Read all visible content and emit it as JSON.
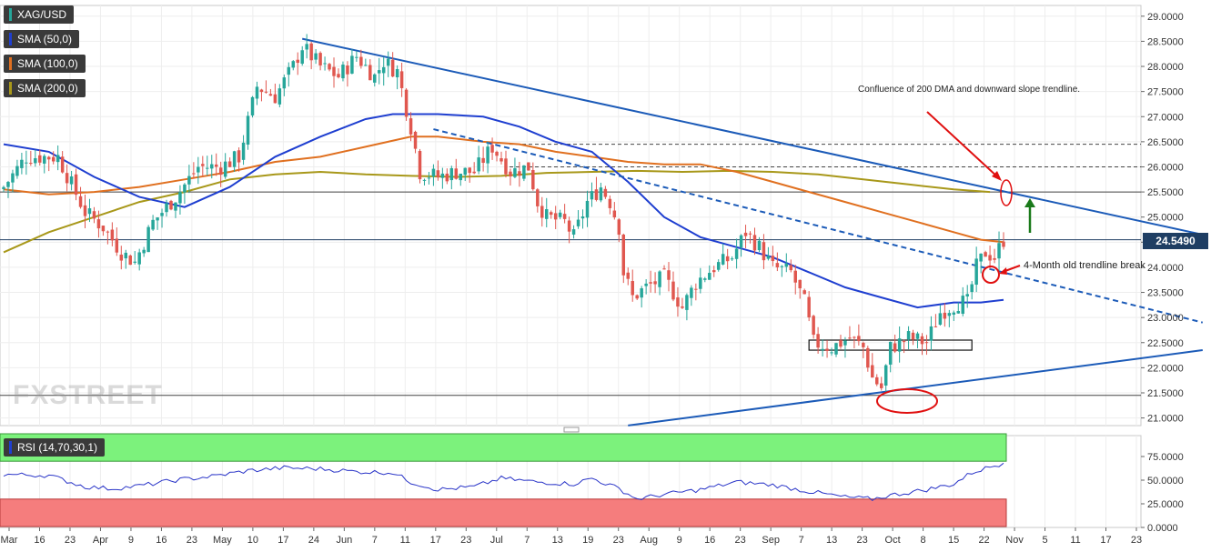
{
  "legend": {
    "symbol": {
      "label": "XAG/USD",
      "color": "#26a69a"
    },
    "sma50": {
      "label": "SMA (50,0)",
      "color": "#1f3fd0"
    },
    "sma100": {
      "label": "SMA (100,0)",
      "color": "#e07020"
    },
    "sma200": {
      "label": "SMA (200,0)",
      "color": "#a8981a"
    }
  },
  "rsi_label": "RSI (14,70,30,1)",
  "last_price": "24.5490",
  "watermark": "FXSTREET",
  "annotations": {
    "confluence": "Confluence of 200 DMA and downward slope trendline.",
    "trendline_break": "4-Month old trendline break"
  },
  "chart_data": [
    {
      "type": "candlestick",
      "series_name": "XAG/USD",
      "y_ticks": [
        "29.0000",
        "28.5000",
        "28.0000",
        "27.5000",
        "27.0000",
        "26.5000",
        "26.0000",
        "25.5000",
        "25.0000",
        "24.5000",
        "24.0000",
        "23.5000",
        "23.0000",
        "22.5000",
        "22.0000",
        "21.5000",
        "21.0000"
      ],
      "ylim": [
        20.85,
        29.25
      ],
      "x_ticks": [
        "Mar",
        "16",
        "23",
        "Apr",
        "9",
        "16",
        "23",
        "May",
        "10",
        "17",
        "24",
        "Jun",
        "7",
        "11",
        "17",
        "23",
        "Jul",
        "7",
        "13",
        "19",
        "23",
        "Aug",
        "9",
        "16",
        "23",
        "Sep",
        "7",
        "13",
        "23",
        "Oct",
        "8",
        "15",
        "22",
        "Nov",
        "5",
        "11",
        "17",
        "23"
      ],
      "anchors": [
        {
          "day": 0,
          "close": 25.6
        },
        {
          "day": 5,
          "close": 26.2
        },
        {
          "day": 12,
          "close": 26.2
        },
        {
          "day": 18,
          "close": 25.1
        },
        {
          "day": 22,
          "close": 24.8
        },
        {
          "day": 26,
          "close": 24.3
        },
        {
          "day": 29,
          "close": 24.1
        },
        {
          "day": 33,
          "close": 24.9
        },
        {
          "day": 38,
          "close": 25.4
        },
        {
          "day": 43,
          "close": 26.0
        },
        {
          "day": 48,
          "close": 26.0
        },
        {
          "day": 52,
          "close": 26.2
        },
        {
          "day": 56,
          "close": 27.6
        },
        {
          "day": 60,
          "close": 27.4
        },
        {
          "day": 64,
          "close": 28.0
        },
        {
          "day": 66,
          "close": 28.4
        },
        {
          "day": 70,
          "close": 28.0
        },
        {
          "day": 74,
          "close": 27.8
        },
        {
          "day": 78,
          "close": 28.2
        },
        {
          "day": 82,
          "close": 27.8
        },
        {
          "day": 84,
          "close": 28.1
        },
        {
          "day": 87,
          "close": 27.9
        },
        {
          "day": 90,
          "close": 26.8
        },
        {
          "day": 92,
          "close": 25.9
        },
        {
          "day": 96,
          "close": 25.8
        },
        {
          "day": 100,
          "close": 25.9
        },
        {
          "day": 104,
          "close": 25.9
        },
        {
          "day": 108,
          "close": 26.4
        },
        {
          "day": 112,
          "close": 25.9
        },
        {
          "day": 116,
          "close": 26.0
        },
        {
          "day": 118,
          "close": 25.3
        },
        {
          "day": 120,
          "close": 25.0
        },
        {
          "day": 124,
          "close": 24.9
        },
        {
          "day": 126,
          "close": 24.6
        },
        {
          "day": 129,
          "close": 25.3
        },
        {
          "day": 132,
          "close": 25.6
        },
        {
          "day": 134,
          "close": 25.3
        },
        {
          "day": 136,
          "close": 24.8
        },
        {
          "day": 137,
          "close": 23.9
        },
        {
          "day": 139,
          "close": 23.4
        },
        {
          "day": 142,
          "close": 23.6
        },
        {
          "day": 146,
          "close": 23.8
        },
        {
          "day": 150,
          "close": 23.2
        },
        {
          "day": 153,
          "close": 23.7
        },
        {
          "day": 157,
          "close": 24.0
        },
        {
          "day": 161,
          "close": 24.2
        },
        {
          "day": 164,
          "close": 24.7
        },
        {
          "day": 167,
          "close": 24.4
        },
        {
          "day": 170,
          "close": 24.0
        },
        {
          "day": 174,
          "close": 23.9
        },
        {
          "day": 177,
          "close": 23.3
        },
        {
          "day": 179,
          "close": 22.5
        },
        {
          "day": 183,
          "close": 22.4
        },
        {
          "day": 187,
          "close": 22.6
        },
        {
          "day": 190,
          "close": 22.4
        },
        {
          "day": 192,
          "close": 21.8
        },
        {
          "day": 194,
          "close": 21.6
        },
        {
          "day": 196,
          "close": 22.4
        },
        {
          "day": 200,
          "close": 22.6
        },
        {
          "day": 204,
          "close": 22.5
        },
        {
          "day": 207,
          "close": 23.1
        },
        {
          "day": 211,
          "close": 23.3
        },
        {
          "day": 213,
          "close": 23.3
        },
        {
          "day": 215,
          "close": 24.0
        },
        {
          "day": 217,
          "close": 24.3
        },
        {
          "day": 219,
          "close": 24.2
        },
        {
          "day": 221,
          "close": 24.55
        }
      ],
      "sma50": [
        [
          0,
          26.45
        ],
        [
          10,
          26.3
        ],
        [
          20,
          25.8
        ],
        [
          30,
          25.4
        ],
        [
          40,
          25.2
        ],
        [
          50,
          25.6
        ],
        [
          60,
          26.2
        ],
        [
          70,
          26.6
        ],
        [
          80,
          26.95
        ],
        [
          86,
          27.05
        ],
        [
          96,
          27.05
        ],
        [
          106,
          27.0
        ],
        [
          114,
          26.8
        ],
        [
          122,
          26.5
        ],
        [
          130,
          26.3
        ],
        [
          138,
          25.7
        ],
        [
          146,
          25.0
        ],
        [
          154,
          24.6
        ],
        [
          162,
          24.4
        ],
        [
          170,
          24.2
        ],
        [
          178,
          23.9
        ],
        [
          186,
          23.6
        ],
        [
          194,
          23.4
        ],
        [
          202,
          23.2
        ],
        [
          210,
          23.3
        ],
        [
          216,
          23.3
        ],
        [
          221,
          23.35
        ]
      ],
      "sma100": [
        [
          0,
          25.55
        ],
        [
          10,
          25.45
        ],
        [
          20,
          25.5
        ],
        [
          30,
          25.6
        ],
        [
          40,
          25.75
        ],
        [
          50,
          25.9
        ],
        [
          60,
          26.1
        ],
        [
          70,
          26.2
        ],
        [
          80,
          26.4
        ],
        [
          90,
          26.6
        ],
        [
          96,
          26.6
        ],
        [
          106,
          26.5
        ],
        [
          114,
          26.45
        ],
        [
          122,
          26.3
        ],
        [
          130,
          26.2
        ],
        [
          138,
          26.1
        ],
        [
          146,
          26.05
        ],
        [
          154,
          26.05
        ],
        [
          162,
          25.9
        ],
        [
          170,
          25.7
        ],
        [
          178,
          25.5
        ],
        [
          186,
          25.3
        ],
        [
          194,
          25.1
        ],
        [
          202,
          24.9
        ],
        [
          210,
          24.7
        ],
        [
          216,
          24.55
        ],
        [
          221,
          24.5
        ]
      ],
      "sma200": [
        [
          0,
          24.3
        ],
        [
          10,
          24.7
        ],
        [
          20,
          25.0
        ],
        [
          30,
          25.3
        ],
        [
          40,
          25.5
        ],
        [
          50,
          25.75
        ],
        [
          60,
          25.85
        ],
        [
          70,
          25.9
        ],
        [
          80,
          25.85
        ],
        [
          90,
          25.82
        ],
        [
          100,
          25.8
        ],
        [
          110,
          25.82
        ],
        [
          120,
          25.88
        ],
        [
          130,
          25.9
        ],
        [
          140,
          25.92
        ],
        [
          150,
          25.9
        ],
        [
          160,
          25.92
        ],
        [
          170,
          25.9
        ],
        [
          180,
          25.85
        ],
        [
          190,
          25.75
        ],
        [
          200,
          25.65
        ],
        [
          210,
          25.55
        ],
        [
          218,
          25.5
        ]
      ],
      "horizontal_levels": [
        26.45,
        26.0,
        25.5,
        24.549,
        21.45
      ],
      "trendlines": [
        {
          "style": "solid",
          "from": [
            66,
            28.55
          ],
          "to": [
            265,
            24.65
          ]
        },
        {
          "style": "dashed",
          "from": [
            95,
            26.75
          ],
          "to": [
            265,
            22.9
          ]
        },
        {
          "style": "solid",
          "from": [
            138,
            20.85
          ],
          "to": [
            265,
            22.35
          ]
        }
      ],
      "box_zone": [
        178,
        22.55,
        214,
        22.35
      ]
    },
    {
      "type": "line",
      "series_name": "RSI (14,70,30,1)",
      "y_ticks": [
        "75.0000",
        "50.0000",
        "25.0000",
        "0.0000"
      ],
      "ylim": [
        0,
        100
      ],
      "overbought": 70,
      "oversold": 30,
      "values": [
        [
          0,
          56
        ],
        [
          10,
          55
        ],
        [
          18,
          43
        ],
        [
          24,
          41
        ],
        [
          30,
          44
        ],
        [
          38,
          50
        ],
        [
          46,
          54
        ],
        [
          54,
          60
        ],
        [
          62,
          63
        ],
        [
          70,
          62
        ],
        [
          78,
          59
        ],
        [
          86,
          58
        ],
        [
          90,
          48
        ],
        [
          96,
          40
        ],
        [
          104,
          43
        ],
        [
          110,
          52
        ],
        [
          118,
          48
        ],
        [
          126,
          46
        ],
        [
          130,
          52
        ],
        [
          136,
          41
        ],
        [
          140,
          30
        ],
        [
          146,
          35
        ],
        [
          154,
          40
        ],
        [
          162,
          48
        ],
        [
          170,
          45
        ],
        [
          178,
          38
        ],
        [
          186,
          32
        ],
        [
          192,
          30
        ],
        [
          196,
          34
        ],
        [
          204,
          40
        ],
        [
          210,
          46
        ],
        [
          214,
          58
        ],
        [
          218,
          64
        ],
        [
          221,
          68
        ]
      ]
    }
  ]
}
